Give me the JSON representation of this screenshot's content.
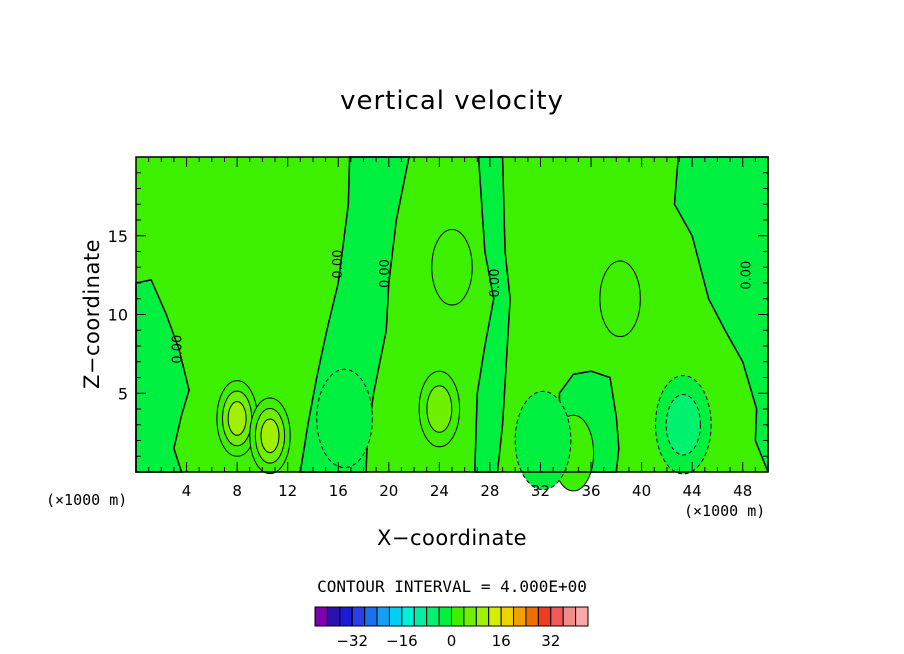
{
  "chart_data": {
    "type": "heatmap",
    "title": "vertical velocity",
    "xlabel": "X−coordinate",
    "ylabel": "Z−coordinate",
    "x_unit_label_left": "(×1000 m)",
    "x_unit_label_right": "(×1000 m)",
    "xlim": [
      0,
      50
    ],
    "ylim": [
      0,
      20
    ],
    "x_ticks": [
      4,
      8,
      12,
      16,
      20,
      24,
      28,
      32,
      36,
      40,
      44,
      48
    ],
    "y_ticks": [
      5,
      10,
      15
    ],
    "contour_interval_label": "CONTOUR INTERVAL = 4.000E+00",
    "contour_interval": 4.0,
    "contour_labels": [
      {
        "x": 3.6,
        "y": 7.8,
        "text": "0.00"
      },
      {
        "x": 16.3,
        "y": 13.2,
        "text": "0.00"
      },
      {
        "x": 20.0,
        "y": 12.6,
        "text": "0.00"
      },
      {
        "x": 28.7,
        "y": 12.0,
        "text": "0.00"
      },
      {
        "x": 48.6,
        "y": 12.5,
        "text": "0.00"
      }
    ],
    "features": [
      {
        "x": 8.0,
        "y": 3.4,
        "value": 12,
        "kind": "updraft"
      },
      {
        "x": 10.6,
        "y": 2.3,
        "value": 12,
        "kind": "updraft"
      },
      {
        "x": 24.0,
        "y": 4.0,
        "value": 8,
        "kind": "updraft"
      },
      {
        "x": 34.6,
        "y": 1.2,
        "value": 4,
        "kind": "updraft"
      },
      {
        "x": 25.0,
        "y": 13.0,
        "value": 4,
        "kind": "updraft"
      },
      {
        "x": 38.3,
        "y": 11.0,
        "value": 4,
        "kind": "updraft"
      },
      {
        "x": 16.5,
        "y": 3.4,
        "value": -4,
        "kind": "downdraft"
      },
      {
        "x": 32.2,
        "y": 2.0,
        "value": -4,
        "kind": "downdraft"
      },
      {
        "x": 43.3,
        "y": 3.0,
        "value": -8,
        "kind": "downdraft"
      }
    ],
    "colorbar": {
      "levels": [
        -40,
        -36,
        -32,
        -28,
        -24,
        -20,
        -16,
        -12,
        -8,
        -4,
        0,
        4,
        8,
        12,
        16,
        20,
        24,
        28,
        32,
        36,
        40
      ],
      "tick_labels": [
        "−32",
        "−16",
        "0",
        "16",
        "32"
      ],
      "tick_values": [
        -32,
        -16,
        0,
        16,
        32
      ],
      "colors": [
        "#7f00b0",
        "#2c12aa",
        "#1b1bd6",
        "#2a3fe6",
        "#1a6ef0",
        "#14a0f0",
        "#00cef0",
        "#00f0d8",
        "#00f0a0",
        "#00f070",
        "#00f040",
        "#3cf000",
        "#6ef000",
        "#a0f000",
        "#d2f000",
        "#f0d200",
        "#f0a000",
        "#f06e00",
        "#f03c1e",
        "#f05a5a",
        "#f08c8c",
        "#f7a8a8"
      ]
    },
    "grid": false,
    "legend_position": "bottom"
  }
}
